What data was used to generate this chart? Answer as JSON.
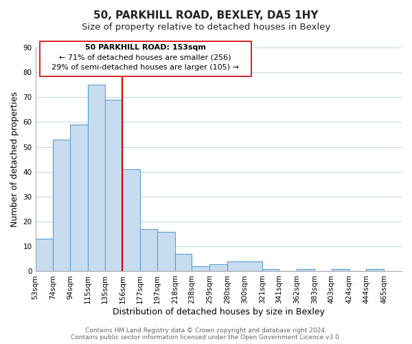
{
  "title": "50, PARKHILL ROAD, BEXLEY, DA5 1HY",
  "subtitle": "Size of property relative to detached houses in Bexley",
  "xlabel": "Distribution of detached houses by size in Bexley",
  "ylabel": "Number of detached properties",
  "bar_color": "#c8dcf0",
  "bar_edge_color": "#5a9fd4",
  "bar_left_edges": [
    53,
    74,
    94,
    115,
    135,
    156,
    177,
    197,
    218,
    238,
    259,
    280,
    321,
    341,
    362,
    383,
    403,
    424,
    444
  ],
  "bar_heights": [
    13,
    53,
    59,
    75,
    69,
    41,
    17,
    16,
    7,
    2,
    3,
    4,
    1,
    0,
    1,
    0,
    1,
    0,
    1
  ],
  "bar_widths": [
    21,
    20,
    21,
    20,
    21,
    21,
    20,
    21,
    20,
    21,
    21,
    41,
    20,
    21,
    21,
    20,
    21,
    20,
    21
  ],
  "x_tick_labels": [
    "53sqm",
    "74sqm",
    "94sqm",
    "115sqm",
    "135sqm",
    "156sqm",
    "177sqm",
    "197sqm",
    "218sqm",
    "238sqm",
    "259sqm",
    "280sqm",
    "300sqm",
    "321sqm",
    "341sqm",
    "362sqm",
    "383sqm",
    "403sqm",
    "424sqm",
    "444sqm",
    "465sqm"
  ],
  "x_tick_positions": [
    53,
    74,
    94,
    115,
    135,
    156,
    177,
    197,
    218,
    238,
    259,
    280,
    300,
    321,
    341,
    362,
    383,
    403,
    424,
    444,
    465
  ],
  "ylim": [
    0,
    90
  ],
  "yticks": [
    0,
    10,
    20,
    30,
    40,
    50,
    60,
    70,
    80,
    90
  ],
  "xlim_min": 53,
  "xlim_max": 486,
  "vline_x": 156,
  "vline_color": "#cc0000",
  "annotation_line1": "50 PARKHILL ROAD: 153sqm",
  "annotation_line2": "← 71% of detached houses are smaller (256)",
  "annotation_line3": "29% of semi-detached houses are larger (105) →",
  "annotation_box_color": "#ffffff",
  "annotation_box_edge_color": "#cc0000",
  "footer_line1": "Contains HM Land Registry data © Crown copyright and database right 2024.",
  "footer_line2": "Contains public sector information licensed under the Open Government Licence v3.0.",
  "background_color": "#ffffff",
  "grid_color": "#c8d8e8",
  "title_fontsize": 11,
  "subtitle_fontsize": 9.5,
  "axis_label_fontsize": 9,
  "tick_fontsize": 7.5,
  "annotation_fontsize": 8,
  "footer_fontsize": 6.5
}
